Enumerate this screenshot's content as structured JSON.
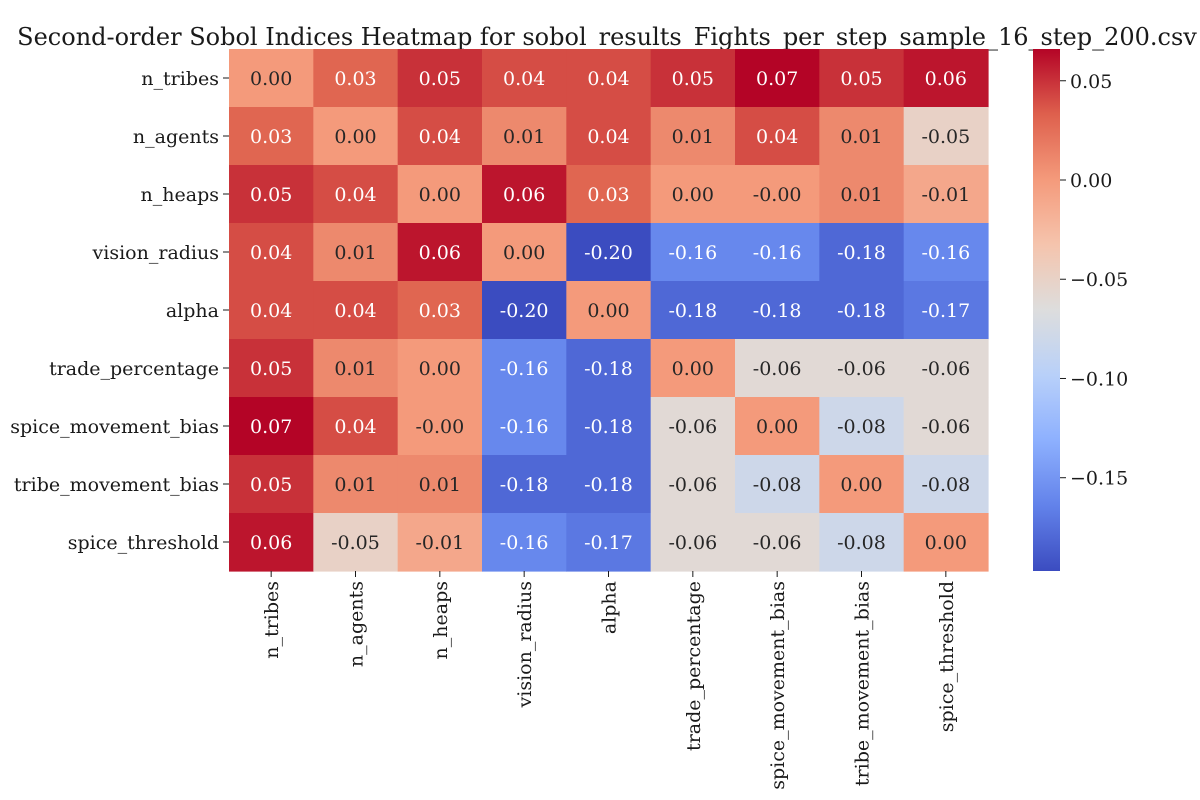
{
  "chart_data": {
    "type": "heatmap",
    "title": "Second-order Sobol Indices Heatmap for sobol_results_Fights_per_step_sample_16_step_200.csv",
    "xlabel": "",
    "ylabel": "",
    "row_labels": [
      "n_tribes",
      "n_agents",
      "n_heaps",
      "vision_radius",
      "alpha",
      "trade_percentage",
      "spice_movement_bias",
      "tribe_movement_bias",
      "spice_threshold"
    ],
    "col_labels": [
      "n_tribes",
      "n_agents",
      "n_heaps",
      "vision_radius",
      "alpha",
      "trade_percentage",
      "spice_movement_bias",
      "tribe_movement_bias",
      "spice_threshold"
    ],
    "values": [
      [
        0.0,
        0.03,
        0.05,
        0.04,
        0.04,
        0.05,
        0.07,
        0.05,
        0.06
      ],
      [
        0.03,
        0.0,
        0.04,
        0.01,
        0.04,
        0.01,
        0.04,
        0.01,
        -0.05
      ],
      [
        0.05,
        0.04,
        0.0,
        0.06,
        0.03,
        0.0,
        -0.0,
        0.01,
        -0.01
      ],
      [
        0.04,
        0.01,
        0.06,
        0.0,
        -0.2,
        -0.16,
        -0.16,
        -0.18,
        -0.16
      ],
      [
        0.04,
        0.04,
        0.03,
        -0.2,
        0.0,
        -0.18,
        -0.18,
        -0.18,
        -0.17
      ],
      [
        0.05,
        0.01,
        0.0,
        -0.16,
        -0.18,
        0.0,
        -0.06,
        -0.06,
        -0.06
      ],
      [
        0.07,
        0.04,
        -0.0,
        -0.16,
        -0.18,
        -0.06,
        0.0,
        -0.08,
        -0.06
      ],
      [
        0.05,
        0.01,
        0.01,
        -0.18,
        -0.18,
        -0.06,
        -0.08,
        0.0,
        -0.08
      ],
      [
        0.06,
        -0.05,
        -0.01,
        -0.16,
        -0.17,
        -0.06,
        -0.06,
        -0.08,
        0.0
      ]
    ],
    "cell_text": [
      [
        "0.00",
        "0.03",
        "0.05",
        "0.04",
        "0.04",
        "0.05",
        "0.07",
        "0.05",
        "0.06"
      ],
      [
        "0.03",
        "0.00",
        "0.04",
        "0.01",
        "0.04",
        "0.01",
        "0.04",
        "0.01",
        "-0.05"
      ],
      [
        "0.05",
        "0.04",
        "0.00",
        "0.06",
        "0.03",
        "0.00",
        "-0.00",
        "0.01",
        "-0.01"
      ],
      [
        "0.04",
        "0.01",
        "0.06",
        "0.00",
        "-0.20",
        "-0.16",
        "-0.16",
        "-0.18",
        "-0.16"
      ],
      [
        "0.04",
        "0.04",
        "0.03",
        "-0.20",
        "0.00",
        "-0.18",
        "-0.18",
        "-0.18",
        "-0.17"
      ],
      [
        "0.05",
        "0.01",
        "0.00",
        "-0.16",
        "-0.18",
        "0.00",
        "-0.06",
        "-0.06",
        "-0.06"
      ],
      [
        "0.07",
        "0.04",
        "-0.00",
        "-0.16",
        "-0.18",
        "-0.06",
        "0.00",
        "-0.08",
        "-0.06"
      ],
      [
        "0.05",
        "0.01",
        "0.01",
        "-0.18",
        "-0.18",
        "-0.06",
        "-0.08",
        "0.00",
        "-0.08"
      ],
      [
        "0.06",
        "-0.05",
        "-0.01",
        "-0.16",
        "-0.17",
        "-0.06",
        "-0.06",
        "-0.08",
        "0.00"
      ]
    ],
    "colormap": "coolwarm",
    "color_range": [
      -0.197,
      0.066
    ],
    "colorbar": {
      "ticks": [
        0.05,
        0.0,
        -0.05,
        -0.1,
        -0.15
      ],
      "tick_labels": [
        "0.05",
        "0.00",
        "−0.05",
        "−0.10",
        "−0.15"
      ],
      "placement": "right"
    },
    "grid": false
  }
}
